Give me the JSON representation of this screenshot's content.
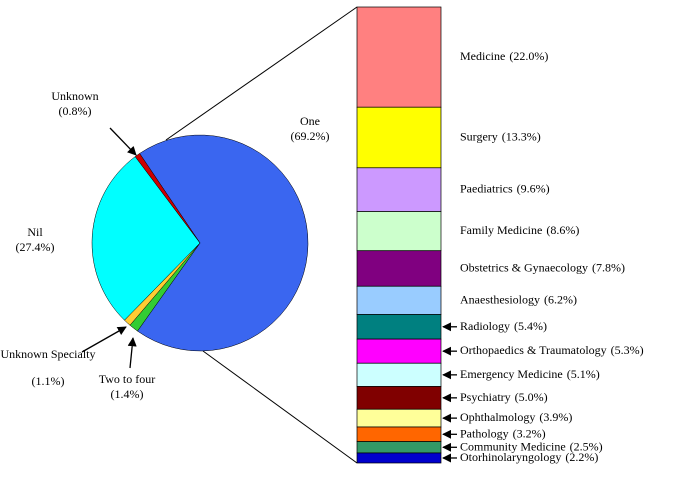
{
  "chart_data": [
    {
      "type": "pie",
      "categories": [
        "One",
        "Two to four",
        "Unknown Specialty",
        "Nil",
        "Unknown"
      ],
      "values": [
        69.2,
        1.4,
        1.1,
        27.4,
        0.8
      ],
      "value_labels": [
        "(69.2%)",
        "(1.4%)",
        "(1.1%)",
        "(27.4%)",
        "(0.8%)"
      ],
      "colors": [
        "#3a66f0",
        "#33cc33",
        "#ffcc33",
        "#00ffff",
        "#cc0000"
      ]
    },
    {
      "type": "bar",
      "categories": [
        "Medicine",
        "Surgery",
        "Paediatrics",
        "Family Medicine",
        "Obstetrics & Gynaecology",
        "Anaesthesiology",
        "Radiology",
        "Orthopaedics & Traumatology",
        "Emergency Medicine",
        "Psychiatry",
        "Ophthalmology",
        "Pathology",
        "Community Medicine",
        "Otorhinolaryngology"
      ],
      "values": [
        22.0,
        13.3,
        9.6,
        8.6,
        7.8,
        6.2,
        5.4,
        5.3,
        5.1,
        5.0,
        3.9,
        3.2,
        2.5,
        2.2
      ],
      "value_labels": [
        "(22.0%)",
        "(13.3%)",
        "(9.6%)",
        "(8.6%)",
        "(7.8%)",
        "(6.2%)",
        "(5.4%)",
        "(5.3%)",
        "(5.1%)",
        "(5.0%)",
        "(3.9%)",
        "(3.2%)",
        "(2.5%)",
        "(2.2%)"
      ],
      "colors": [
        "#ff8080",
        "#ffff00",
        "#cc99ff",
        "#ccffcc",
        "#800080",
        "#99ccff",
        "#008080",
        "#ff00ff",
        "#ccffff",
        "#800000",
        "#ffff99",
        "#ff6600",
        "#339966",
        "#0000cc"
      ]
    }
  ]
}
